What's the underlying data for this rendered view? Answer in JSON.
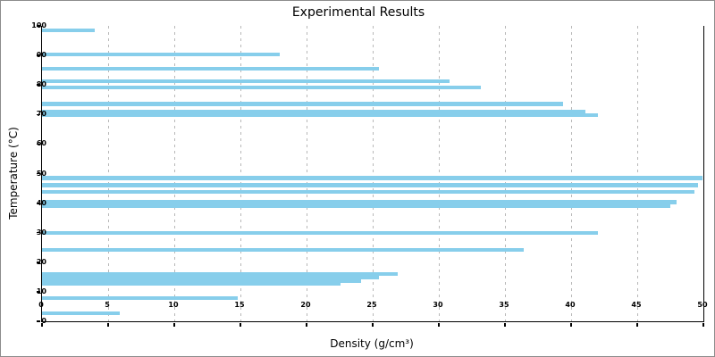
{
  "chart_data": {
    "type": "bar",
    "orientation": "horizontal",
    "title": "Experimental Results",
    "xlabel": "Density (g/cm³)",
    "ylabel": "Temperature (°C)",
    "xlim": [
      0,
      50
    ],
    "ylim": [
      0,
      100
    ],
    "x_ticks": [
      0,
      5,
      10,
      15,
      20,
      25,
      30,
      35,
      40,
      45,
      50
    ],
    "y_ticks": [
      0,
      10,
      20,
      30,
      40,
      50,
      60,
      70,
      80,
      90,
      100
    ],
    "gridlines_x": [
      5,
      10,
      15,
      20,
      25,
      30,
      35,
      40,
      45
    ],
    "grid": "vertical-dashed",
    "legend": "none",
    "bar_color": "#87CEEB",
    "bar_thickness_units": 1.3,
    "points": [
      {
        "temperature": 98.4,
        "density": 4.0
      },
      {
        "temperature": 90.4,
        "density": 18.0
      },
      {
        "temperature": 85.5,
        "density": 25.5
      },
      {
        "temperature": 81.3,
        "density": 30.8
      },
      {
        "temperature": 79.2,
        "density": 33.2
      },
      {
        "temperature": 73.6,
        "density": 39.4
      },
      {
        "temperature": 70.9,
        "density": 41.1
      },
      {
        "temperature": 69.8,
        "density": 42.0
      },
      {
        "temperature": 48.5,
        "density": 49.9
      },
      {
        "temperature": 46.1,
        "density": 49.6
      },
      {
        "temperature": 43.9,
        "density": 49.3
      },
      {
        "temperature": 40.3,
        "density": 48.0
      },
      {
        "temperature": 39.1,
        "density": 47.5
      },
      {
        "temperature": 30.0,
        "density": 42.0
      },
      {
        "temperature": 24.1,
        "density": 36.4
      },
      {
        "temperature": 16.1,
        "density": 26.9
      },
      {
        "temperature": 14.8,
        "density": 25.5
      },
      {
        "temperature": 13.6,
        "density": 24.1
      },
      {
        "temperature": 12.7,
        "density": 22.6
      },
      {
        "temperature": 7.9,
        "density": 14.8
      },
      {
        "temperature": 2.8,
        "density": 5.9
      }
    ]
  }
}
